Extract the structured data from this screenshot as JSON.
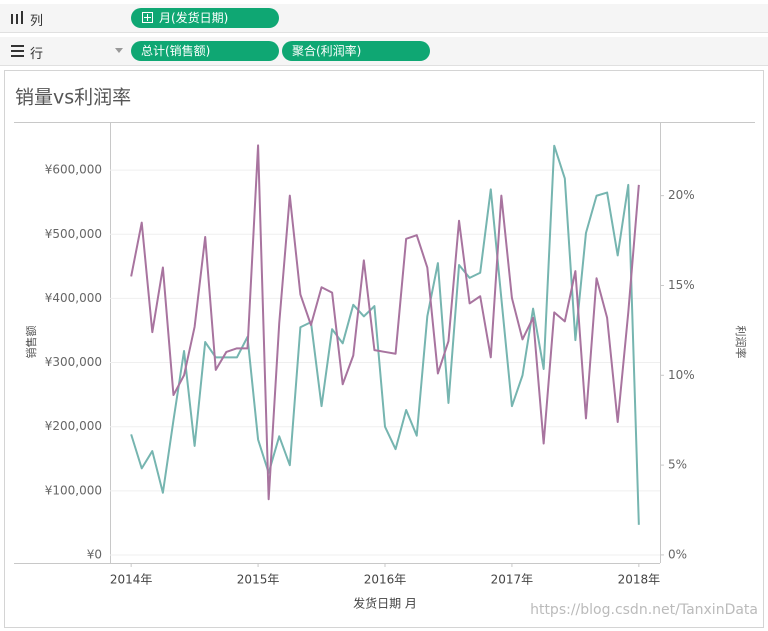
{
  "shelves": {
    "columns": {
      "label": "列",
      "pills": [
        "月(发货日期)"
      ]
    },
    "rows": {
      "label": "行",
      "pills": [
        "总计(销售额)",
        "聚合(利润率)"
      ]
    }
  },
  "watermark": "https://blog.csdn.net/TanxinData",
  "chart_data": {
    "type": "line",
    "title": "销量vs利润率",
    "xlabel": "发货日期 月",
    "ylabel": "销售额",
    "y2label": "利润率",
    "x": [
      "2014-01",
      "2014-02",
      "2014-03",
      "2014-04",
      "2014-05",
      "2014-06",
      "2014-07",
      "2014-08",
      "2014-09",
      "2014-10",
      "2014-11",
      "2014-12",
      "2015-01",
      "2015-02",
      "2015-03",
      "2015-04",
      "2015-05",
      "2015-06",
      "2015-07",
      "2015-08",
      "2015-09",
      "2015-10",
      "2015-11",
      "2015-12",
      "2016-01",
      "2016-02",
      "2016-03",
      "2016-04",
      "2016-05",
      "2016-06",
      "2016-07",
      "2016-08",
      "2016-09",
      "2016-10",
      "2016-11",
      "2016-12",
      "2017-01",
      "2017-02",
      "2017-03",
      "2017-04",
      "2017-05",
      "2017-06",
      "2017-07",
      "2017-08",
      "2017-09",
      "2017-10",
      "2017-11",
      "2017-12",
      "2018-01"
    ],
    "xlim": [
      "2013-11",
      "2018-03"
    ],
    "xticks": [
      {
        "value": "2014-01",
        "label": "2014年"
      },
      {
        "value": "2015-01",
        "label": "2015年"
      },
      {
        "value": "2016-01",
        "label": "2016年"
      },
      {
        "value": "2017-01",
        "label": "2017年"
      },
      {
        "value": "2018-01",
        "label": "2018年"
      }
    ],
    "ylim": [
      -12500,
      675000
    ],
    "yticks": [
      {
        "value": 0,
        "label": "¥0"
      },
      {
        "value": 100000,
        "label": "¥100,000"
      },
      {
        "value": 200000,
        "label": "¥200,000"
      },
      {
        "value": 300000,
        "label": "¥300,000"
      },
      {
        "value": 400000,
        "label": "¥400,000"
      },
      {
        "value": 500000,
        "label": "¥500,000"
      },
      {
        "value": 600000,
        "label": "¥600,000"
      }
    ],
    "y2lim": [
      -0.45,
      24.1
    ],
    "y2ticks": [
      {
        "value": 0,
        "label": "0%"
      },
      {
        "value": 5,
        "label": "5%"
      },
      {
        "value": 10,
        "label": "10%"
      },
      {
        "value": 15,
        "label": "15%"
      },
      {
        "value": 20,
        "label": "20%"
      }
    ],
    "grid": true,
    "series": [
      {
        "color": "#76b5b0",
        "values": [
          188000,
          135000,
          162000,
          97000,
          210000,
          318000,
          170000,
          332000,
          308000,
          308000,
          308000,
          340000,
          180000,
          128000,
          185000,
          140000,
          355000,
          363000,
          232000,
          352000,
          330000,
          390000,
          372000,
          388000,
          200000,
          165000,
          226000,
          186000,
          372000,
          455000,
          237000,
          452000,
          432000,
          440000,
          570000,
          400000,
          232000,
          280000,
          384000,
          290000,
          638000,
          587000,
          335000,
          502000,
          560000,
          565000,
          467000,
          577000,
          47000
        ]
      },
      {
        "color": "#a8749f",
        "axis": "y2",
        "values": [
          15.5,
          18.5,
          12.4,
          16.0,
          8.9,
          10.0,
          12.7,
          17.7,
          10.3,
          11.3,
          11.5,
          11.5,
          22.8,
          3.1,
          12.9,
          20.0,
          14.5,
          12.8,
          14.9,
          14.6,
          9.5,
          11.1,
          16.4,
          11.4,
          11.3,
          11.2,
          17.6,
          17.8,
          16.0,
          10.1,
          11.9,
          18.6,
          14.0,
          14.4,
          11.0,
          20.0,
          14.3,
          12.0,
          13.2,
          6.2,
          13.5,
          13.0,
          15.8,
          7.6,
          15.4,
          13.2,
          7.4,
          13.5,
          20.6
        ]
      }
    ]
  }
}
